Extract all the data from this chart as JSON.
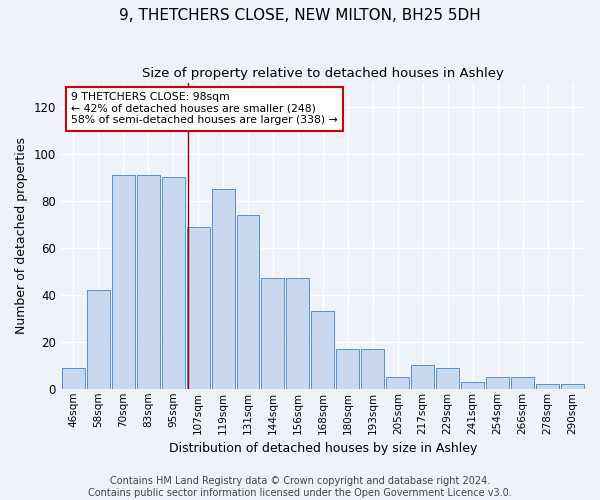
{
  "title": "9, THETCHERS CLOSE, NEW MILTON, BH25 5DH",
  "subtitle": "Size of property relative to detached houses in Ashley",
  "xlabel": "Distribution of detached houses by size in Ashley",
  "ylabel": "Number of detached properties",
  "categories": [
    "46sqm",
    "58sqm",
    "70sqm",
    "83sqm",
    "95sqm",
    "107sqm",
    "119sqm",
    "131sqm",
    "144sqm",
    "156sqm",
    "168sqm",
    "180sqm",
    "193sqm",
    "205sqm",
    "217sqm",
    "229sqm",
    "241sqm",
    "254sqm",
    "266sqm",
    "278sqm",
    "290sqm"
  ],
  "values": [
    9,
    42,
    91,
    91,
    90,
    69,
    85,
    74,
    47,
    47,
    33,
    17,
    17,
    5,
    10,
    9,
    3,
    5,
    5,
    2,
    2
  ],
  "bar_color": "#c8d9ef",
  "bar_edge_color": "#5b8fc4",
  "background_color": "#eef2f9",
  "grid_color": "#ffffff",
  "annotation_text": "9 THETCHERS CLOSE: 98sqm\n← 42% of detached houses are smaller (248)\n58% of semi-detached houses are larger (338) →",
  "vline_x_index": 4.58,
  "annotation_box_color": "#ffffff",
  "annotation_box_edge": "#cc0000",
  "ylim": [
    0,
    130
  ],
  "yticks": [
    0,
    20,
    40,
    60,
    80,
    100,
    120
  ],
  "footer": "Contains HM Land Registry data © Crown copyright and database right 2024.\nContains public sector information licensed under the Open Government Licence v3.0.",
  "title_fontsize": 11,
  "subtitle_fontsize": 9.5,
  "xlabel_fontsize": 9,
  "ylabel_fontsize": 9,
  "footer_fontsize": 7,
  "tick_fontsize": 7.5,
  "ytick_fontsize": 8.5
}
